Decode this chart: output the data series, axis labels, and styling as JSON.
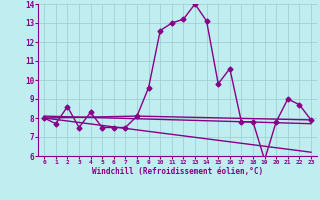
{
  "xlabel": "Windchill (Refroidissement éolien,°C)",
  "xlim": [
    -0.5,
    23.5
  ],
  "ylim": [
    6,
    14
  ],
  "xticks": [
    0,
    1,
    2,
    3,
    4,
    5,
    6,
    7,
    8,
    9,
    10,
    11,
    12,
    13,
    14,
    15,
    16,
    17,
    18,
    19,
    20,
    21,
    22,
    23
  ],
  "yticks": [
    6,
    7,
    8,
    9,
    10,
    11,
    12,
    13,
    14
  ],
  "bg_color": "#c0eef0",
  "line_color": "#880088",
  "grid_color": "#99cccc",
  "line1_x": [
    0,
    1,
    2,
    3,
    4,
    5,
    6,
    7,
    8,
    9,
    10,
    11,
    12,
    13,
    14,
    15,
    16,
    17,
    18,
    19,
    20,
    21,
    22,
    23
  ],
  "line1_y": [
    8.0,
    7.7,
    8.6,
    7.5,
    8.3,
    7.5,
    7.5,
    7.5,
    8.1,
    9.6,
    12.6,
    13.0,
    13.2,
    14.0,
    13.1,
    9.8,
    10.6,
    7.8,
    7.8,
    5.8,
    7.8,
    9.0,
    8.7,
    7.9
  ],
  "line2_x": [
    0,
    23
  ],
  "line2_y": [
    8.1,
    7.7
  ],
  "line3_x": [
    0,
    23
  ],
  "line3_y": [
    8.0,
    6.2
  ],
  "line4_x": [
    0,
    8,
    23
  ],
  "line4_y": [
    8.0,
    8.1,
    7.9
  ],
  "markersize": 2.5,
  "linewidth": 1.0
}
